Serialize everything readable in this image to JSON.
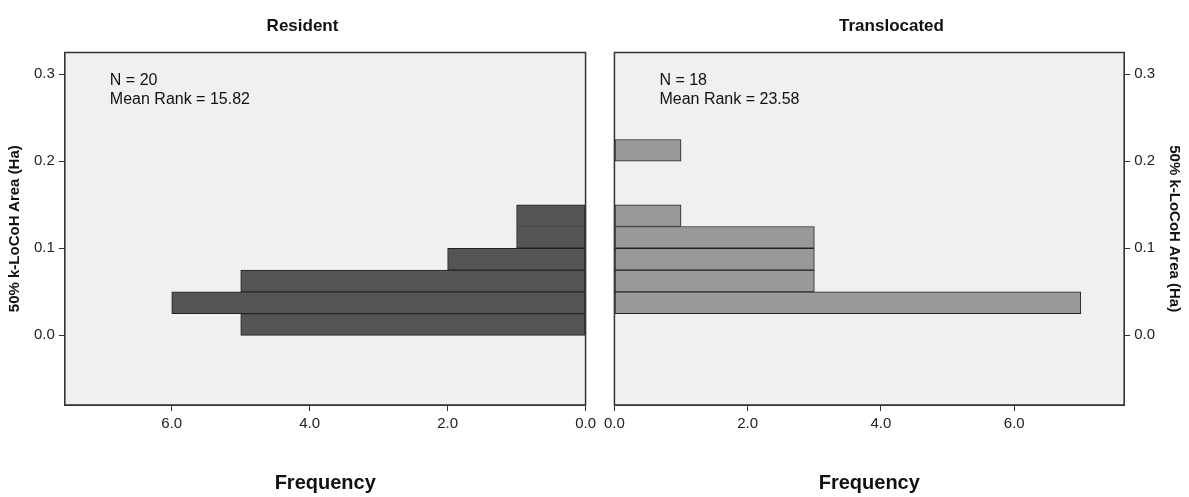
{
  "chart_data": [
    {
      "type": "histogram",
      "title": "Resident",
      "orientation": "horizontal",
      "xlabel": "Frequency",
      "ylabel": "50% k-LoCoH Area (Ha)",
      "bins": [
        0,
        0.025,
        0.05,
        0.075,
        0.1,
        0.125,
        0.15
      ],
      "values": [
        5,
        6,
        5,
        2,
        1,
        1
      ],
      "color": "#555555",
      "xlim": [
        7.55,
        0
      ],
      "xticks": [
        {
          "value": 6,
          "label": "6.0"
        },
        {
          "value": 4,
          "label": "4.0"
        },
        {
          "value": 2,
          "label": "2.0"
        },
        {
          "value": 0,
          "label": "0.0"
        }
      ],
      "ylim": [
        -0.08,
        0.325
      ],
      "yticks": [
        {
          "value": 0,
          "label": "0.0"
        },
        {
          "value": 0.1,
          "label": "0.1"
        },
        {
          "value": 0.2,
          "label": "0.2"
        },
        {
          "value": 0.3,
          "label": "0.3"
        }
      ],
      "annotations": [
        "N = 20",
        "Mean Rank = 15.82"
      ]
    },
    {
      "type": "histogram",
      "title": "Translocated",
      "orientation": "horizontal",
      "xlabel": "Frequency",
      "ylabel": "50% k-LoCoH Area (Ha)",
      "bins": [
        0,
        0.025,
        0.05,
        0.075,
        0.1,
        0.125,
        0.15,
        0.175,
        0.2,
        0.225
      ],
      "values": [
        0,
        7,
        3,
        3,
        3,
        1,
        0,
        0,
        1
      ],
      "color": "#999999",
      "xlim": [
        0,
        7.65
      ],
      "xticks": [
        {
          "value": 0,
          "label": "0.0"
        },
        {
          "value": 2,
          "label": "2.0"
        },
        {
          "value": 4,
          "label": "4.0"
        },
        {
          "value": 6,
          "label": "6.0"
        }
      ],
      "ylim": [
        -0.08,
        0.325
      ],
      "yticks": [
        {
          "value": 0,
          "label": "0.0"
        },
        {
          "value": 0.1,
          "label": "0.1"
        },
        {
          "value": 0.2,
          "label": "0.2"
        },
        {
          "value": 0.3,
          "label": "0.3"
        }
      ],
      "annotations": [
        "N = 18",
        "Mean Rank = 23.58"
      ]
    }
  ]
}
